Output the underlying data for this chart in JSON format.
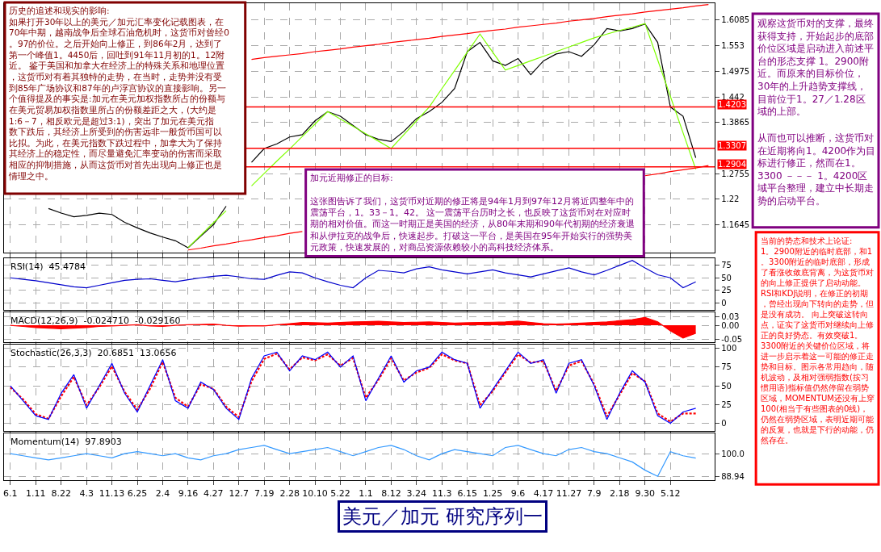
{
  "chart_data": [
    {
      "type": "line",
      "title": "美元／加元 研究序列一",
      "ylim": [
        1.105,
        1.645
      ],
      "tick_labels": "y",
      "grid": true,
      "categories": [
        "6.1",
        null,
        "1.11",
        null,
        "8.22",
        null,
        "4.3",
        null,
        "11.13",
        null,
        "6.25",
        null,
        "2.4",
        null,
        "9.16",
        null,
        "4.27",
        null,
        "12.7",
        null,
        "7.19",
        null,
        "2.28",
        null,
        "10.10",
        null,
        "5.22",
        null,
        "1.1",
        null,
        "8.12",
        null,
        "3.24",
        null,
        "11.3",
        null,
        "6.15",
        null,
        "1.25",
        null,
        "9.6",
        null,
        "4.17",
        null,
        "11.27",
        null,
        "7.9",
        null,
        "2.18",
        null,
        "9.30",
        null,
        "5.12",
        null,
        null,
        null
      ],
      "yticks": [
        1.1645,
        1.22,
        1.2755,
        1.3865,
        1.442,
        1.4975,
        1.553,
        1.6085
      ],
      "series": [
        {
          "color": "#000000",
          "values": [
            null,
            null,
            null,
            1.2,
            1.19,
            1.182,
            1.185,
            1.19,
            1.187,
            1.17,
            1.158,
            1.147,
            1.138,
            1.13,
            1.115,
            1.14,
            1.165,
            1.205,
            null,
            1.3,
            1.33,
            1.34,
            1.355,
            1.36,
            1.39,
            1.41,
            1.4,
            1.38,
            1.36,
            1.35,
            1.345,
            1.367,
            1.395,
            1.41,
            1.43,
            1.46,
            1.54,
            1.56,
            1.52,
            1.51,
            1.525,
            1.49,
            1.52,
            1.535,
            1.54,
            1.53,
            1.555,
            1.59,
            1.585,
            1.59,
            1.6,
            1.56,
            1.42,
            1.4,
            1.31,
            null
          ]
        },
        {
          "color": "#7fff00",
          "values": [
            null,
            null,
            null,
            null,
            null,
            null,
            null,
            null,
            null,
            null,
            null,
            null,
            null,
            null,
            1.115,
            1.142,
            1.169,
            1.195,
            null,
            1.249,
            1.276,
            1.303,
            1.329,
            1.356,
            1.383,
            1.41,
            1.394,
            1.378,
            1.362,
            1.346,
            1.33,
            1.36,
            1.39,
            1.42,
            1.46,
            1.499,
            1.539,
            1.578,
            1.539,
            1.5,
            1.51,
            1.52,
            1.53,
            1.54,
            1.55,
            1.56,
            1.57,
            1.578,
            1.586,
            1.593,
            1.601,
            1.522,
            1.443,
            1.364,
            1.285,
            null
          ]
        },
        {
          "color": "#ff0000",
          "values": [
            null,
            null,
            null,
            null,
            null,
            null,
            null,
            null,
            null,
            null,
            null,
            null,
            null,
            null,
            null,
            null,
            null,
            null,
            null,
            1.523,
            1.527,
            1.53,
            1.533,
            1.536,
            1.54,
            1.543,
            1.546,
            1.55,
            1.553,
            1.556,
            1.56,
            1.563,
            1.566,
            1.569,
            1.573,
            1.576,
            1.579,
            1.583,
            1.586,
            1.589,
            1.593,
            1.596,
            1.599,
            1.602,
            1.606,
            1.609,
            1.612,
            1.616,
            1.619,
            1.622,
            1.626,
            1.629,
            1.632,
            1.635,
            1.639,
            1.642
          ]
        },
        {
          "color": "#ff0000",
          "values": [
            null,
            null,
            null,
            null,
            null,
            null,
            null,
            null,
            null,
            null,
            null,
            null,
            null,
            null,
            1.11,
            1.114,
            1.119,
            1.123,
            1.128,
            1.132,
            1.137,
            1.141,
            1.146,
            1.15,
            null,
            null,
            null,
            null,
            null,
            null,
            null,
            null,
            null,
            null,
            null,
            null,
            null,
            null,
            null,
            null,
            null,
            null,
            null,
            null,
            null,
            null,
            null,
            null,
            null,
            null,
            1.271,
            1.275,
            1.28,
            1.284,
            1.288,
            1.293
          ]
        }
      ],
      "ref_lines": [
        {
          "axis": "y",
          "value": 1.4203,
          "label": "1.4203",
          "color": "#ff0000"
        },
        {
          "axis": "y",
          "value": 1.3307,
          "label": "1.3307",
          "color": "#ff0000"
        },
        {
          "axis": "y",
          "value": 1.2904,
          "label": "1.2904",
          "color": "#ff0000"
        }
      ],
      "annotations": [
        "历史的追述和现实的影响:\n如果打开30年以上的美元／加元汇率变化记载图表，在70年中期，越南战争后全球石油危机时，这货币对曾经0。97的价位。之后开始向上修正，到86年2月，达到了第一个峰值1。4450后，回吐到91年11月初的1。12附近。 鉴于美国和加拿大在经济上的特殊关系和地理位置，这货币对有着其独特的走势，在当时，走势并没有受到85年广场协议和87年的卢浮宫协议的直接影响。另一个值得提及的事实是:加元在美元加权指数所占的份额与在美元贸易加权指数里所占的份额差距之大，(大约是1:6－7，相反欧元是超过3:1)，突出了加元在美元指数下跌后，其经济上所受到的伤害远非一般货币国可以比拟。为此，在美元指数下跌过程中，加拿大为了保持其经济上的稳定性，而尽量避免汇率变动的伤害而采取相应的抑制措施，从而这货币对首先出现向上修正也是情理之中。",
        "加元近期修正的目标:\n\n这张图告诉了我们，这货币对近期的修正将是94年1月到97年12月将近四整年中的震荡平台，1。33－1。42。 这一震荡平台历时之长，也反映了这货币对在对应时期的相对价值。而这一时期正是美国的经济，从80年末期和90年代初期的经济衰退和从伊拉克的战争后，快速起步。打破这一平台，是美国在95年开始实行的强势美元政策，快速发展的，对商品资源依赖较小的高科技经济体系。",
        "观察这货币对的支撑，最终获得支持，开始起步的底部价位区域是启动进入前述平台的形态支撑 1。2900附近。而原来的目标价位，30年的上升趋势支撑线，目前位于1。27／1.28区域的上部。",
        "从而也可以推断，这货币对在近期将向1。4200作为目标进行修正，然而在1。3300 －－－ 1。4200区域平台整理，建立中长期走势的启动平台。",
        "当前的势态和技术上论证:\n1。2900附近的临时底部，和1。3300附近的临时底部，形成了看涨收敛底背离，为这货币对的向上修正提供了启动动能。 RSI和KDJ说明，在修正的初期，曾经出现向下转向的走势，但是没有成功。 向上突破这转向点，证实了这货币对继续向上修正的良好势态。有效突破1。3300附近的关键价位区域，将进一步启示着这一可能的修正走势和目标。图示各常用趋向，随机波动，及相对强弱指数(按习惯用语)指标值仍然停留在弱势区域，MOMENTUM还没有上穿100(相当于有些图表的0线)，仍然在弱势区域，表明近期可能的反复，也就是下行的动能，仍然存在。"
      ]
    },
    {
      "type": "line",
      "title": "RSI(14)  45.4784",
      "ylim": [
        -15,
        90
      ],
      "yticks": [
        0,
        25,
        50,
        75
      ],
      "tick_labels": "y",
      "grid": true,
      "categories": [
        "6.1",
        null,
        "1.11",
        null,
        "8.22",
        null,
        "4.3",
        null,
        "11.13",
        null,
        "6.25",
        null,
        "2.4",
        null,
        "9.16",
        null,
        "4.27",
        null,
        "12.7",
        null,
        "7.19",
        null,
        "2.28",
        null,
        "10.10",
        null,
        "5.22",
        null,
        "1.1",
        null,
        "8.12",
        null,
        "3.24",
        null,
        "11.3",
        null,
        "6.15",
        null,
        "1.25",
        null,
        "9.6",
        null,
        "4.17",
        null,
        "11.27",
        null,
        "7.9",
        null,
        "2.18",
        null,
        "9.30",
        null,
        "5.12",
        null,
        null,
        null
      ],
      "series": [
        {
          "color": "#0000cc",
          "values": [
            50,
            47,
            44,
            40,
            36,
            32,
            30,
            35,
            40,
            45,
            47,
            48,
            45,
            42,
            46,
            50,
            53,
            55,
            52,
            48,
            47,
            55,
            62,
            60,
            50,
            42,
            35,
            30,
            50,
            65,
            63,
            60,
            68,
            72,
            66,
            62,
            58,
            62,
            66,
            60,
            56,
            52,
            58,
            64,
            70,
            62,
            56,
            65,
            75,
            85,
            70,
            56,
            50,
            30,
            42,
            null
          ]
        }
      ]
    },
    {
      "type": "area",
      "title": "MACD(12,26,9)  -0.024710  -0.029160",
      "ylim": [
        -0.06,
        0.045
      ],
      "yticks": [
        0.03,
        {
          "value": 0,
          "label": "0.00"
        },
        -0.05
      ],
      "tick_labels": "y",
      "grid": true,
      "categories": [
        "6.1",
        null,
        "1.11",
        null,
        "8.22",
        null,
        "4.3",
        null,
        "11.13",
        null,
        "6.25",
        null,
        "2.4",
        null,
        "9.16",
        null,
        "4.27",
        null,
        "12.7",
        null,
        "7.19",
        null,
        "2.28",
        null,
        "10.10",
        null,
        "5.22",
        null,
        "1.1",
        null,
        "8.12",
        null,
        "3.24",
        null,
        "11.3",
        null,
        "6.15",
        null,
        "1.25",
        null,
        "9.6",
        null,
        "4.17",
        null,
        "11.27",
        null,
        "7.9",
        null,
        "2.18",
        null,
        "9.30",
        null,
        "5.12",
        null,
        null,
        null
      ],
      "series": [
        {
          "color": "#ff0000",
          "values": [
            0,
            -0.004,
            -0.008,
            -0.01,
            -0.012,
            -0.01,
            -0.008,
            -0.004,
            -0.002,
            0,
            0.002,
            -0.002,
            -0.004,
            0,
            0.002,
            0.003,
            0.004,
            0,
            -0.003,
            -0.002,
            -0.002,
            0.002,
            0.006,
            0.01,
            0.009,
            0.008,
            0.01,
            0.012,
            0.013,
            0.014,
            0.012,
            0.01,
            0.011,
            0.012,
            0.01,
            0.008,
            0.009,
            0.01,
            0.011,
            0.012,
            0.015,
            0.01,
            0.006,
            0.004,
            0.006,
            0.008,
            0.01,
            0.012,
            0.016,
            0.02,
            0.028,
            0.012,
            -0.02,
            -0.045,
            -0.028,
            null
          ]
        }
      ]
    },
    {
      "type": "line",
      "title": "Stochastic(26,3,3)  20.6851  13.0656",
      "ylim": [
        -10,
        105
      ],
      "yticks": [
        0,
        25,
        50,
        75,
        100
      ],
      "tick_labels": "y",
      "grid": true,
      "categories": [
        "6.1",
        null,
        "1.11",
        null,
        "8.22",
        null,
        "4.3",
        null,
        "11.13",
        null,
        "6.25",
        null,
        "2.4",
        null,
        "9.16",
        null,
        "4.27",
        null,
        "12.7",
        null,
        "7.19",
        null,
        "2.28",
        null,
        "10.10",
        null,
        "5.22",
        null,
        "1.1",
        null,
        "8.12",
        null,
        "3.24",
        null,
        "11.3",
        null,
        "6.15",
        null,
        "1.25",
        null,
        "9.6",
        null,
        "4.17",
        null,
        "11.27",
        null,
        "7.9",
        null,
        "2.18",
        null,
        "9.30",
        null,
        "5.12",
        null,
        null,
        null
      ],
      "series": [
        {
          "color": "#ff0000",
          "line_style": "dashed",
          "values": [
            48,
            32,
            12,
            6,
            36,
            62,
            24,
            48,
            76,
            42,
            18,
            46,
            82,
            34,
            22,
            52,
            46,
            22,
            8,
            56,
            86,
            93,
            72,
            88,
            84,
            92,
            77,
            87,
            34,
            58,
            87,
            57,
            68,
            74,
            92,
            84,
            80,
            24,
            43,
            68,
            92,
            81,
            83,
            43,
            77,
            83,
            52,
            9,
            38,
            67,
            56,
            13,
            2,
            13,
            13,
            null
          ]
        },
        {
          "color": "#0000ff",
          "values": [
            50,
            30,
            10,
            5,
            40,
            65,
            20,
            50,
            80,
            40,
            15,
            50,
            85,
            30,
            20,
            55,
            45,
            20,
            5,
            60,
            90,
            95,
            70,
            90,
            85,
            95,
            75,
            90,
            30,
            60,
            90,
            55,
            70,
            75,
            95,
            85,
            80,
            20,
            45,
            70,
            95,
            80,
            85,
            40,
            80,
            85,
            50,
            5,
            40,
            70,
            55,
            10,
            0,
            15,
            20,
            null
          ]
        }
      ]
    },
    {
      "type": "line",
      "title": "Momentum(14)  97.8903",
      "ylim": [
        87,
        110
      ],
      "yticks": [
        88.94,
        {
          "value": 100,
          "label": "100.0"
        }
      ],
      "grid": true,
      "categories": [
        "6.1",
        null,
        "1.11",
        null,
        "8.22",
        null,
        "4.3",
        null,
        "11.13",
        null,
        "6.25",
        null,
        "2.4",
        null,
        "9.16",
        null,
        "4.27",
        null,
        "12.7",
        null,
        "7.19",
        null,
        "2.28",
        null,
        "10.10",
        null,
        "5.22",
        null,
        "1.1",
        null,
        "8.12",
        null,
        "3.24",
        null,
        "11.3",
        null,
        "6.15",
        null,
        "1.25",
        null,
        "9.6",
        null,
        "4.17",
        null,
        "11.27",
        null,
        "7.9",
        null,
        "2.18",
        null,
        "9.30",
        null,
        "5.12",
        null,
        null,
        null
      ],
      "series": [
        {
          "color": "#3399ff",
          "values": [
            100,
            99,
            98,
            97,
            98,
            99,
            100,
            99,
            98,
            100,
            101,
            100,
            99,
            100,
            98,
            97,
            99,
            100,
            102,
            103,
            104,
            102,
            100,
            101,
            102,
            103,
            101,
            99,
            101,
            103,
            104,
            102,
            99,
            97,
            100,
            102,
            101,
            100,
            99,
            103,
            104,
            102,
            100,
            99,
            102,
            103,
            101,
            100,
            98,
            96,
            92,
            89,
            101,
            99,
            97.9,
            null
          ]
        }
      ]
    }
  ]
}
